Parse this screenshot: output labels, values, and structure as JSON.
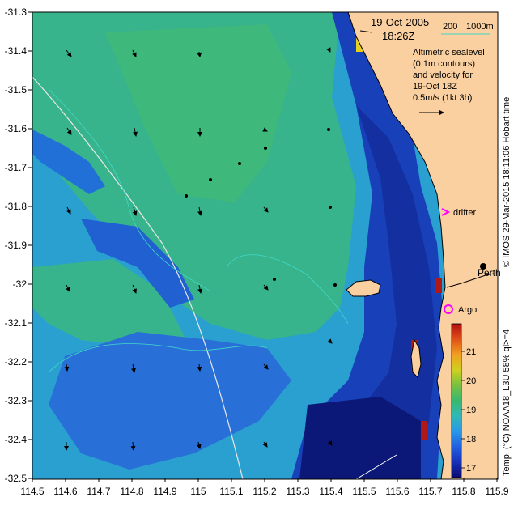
{
  "map": {
    "date": "19-Oct-2005",
    "time": "18:26Z",
    "isobaths": [
      "200",
      "1000m"
    ],
    "isobath_colors": [
      "#e8e8e8",
      "#40d8c8"
    ],
    "altimetry_note": [
      "Altimetric sealevel",
      "(0.1m contours)",
      "and velocity for",
      "19-Oct 18Z"
    ],
    "velocity_scale_label": "0.5m/s (1kt 3h)",
    "drifter_label": "drifter",
    "argo_label": "Argo",
    "city_label": "Perth",
    "side_caption": "Temp. (°C) NOAA18_L3U 58% ql>=4",
    "copyright": "© IMOS 29-Mar-2015 18:11:06 Hobart time",
    "marker_color": "#ff00ff",
    "land_color": "#fbd0a0",
    "x_ticks": [
      "114.5",
      "114.6",
      "114.7",
      "114.8",
      "114.9",
      "115",
      "115.1",
      "115.2",
      "115.3",
      "115.4",
      "115.5",
      "115.6",
      "115.7",
      "115.8",
      "115.9"
    ],
    "y_ticks": [
      "-31.3",
      "-31.4",
      "-31.5",
      "-31.6",
      "-31.7",
      "-31.8",
      "-31.9",
      "-32",
      "-32.1",
      "-32.2",
      "-32.3",
      "-32.4",
      "-32.5"
    ],
    "colorbar": {
      "ticks": [
        "17",
        "18",
        "19",
        "20",
        "21"
      ],
      "range": [
        16.5,
        21.8
      ],
      "colors": [
        "#0a0a70",
        "#1830b8",
        "#2060e0",
        "#2898e8",
        "#30b8b8",
        "#38b870",
        "#78c040",
        "#d0d020",
        "#f0a020",
        "#e05018",
        "#b01010"
      ]
    }
  }
}
